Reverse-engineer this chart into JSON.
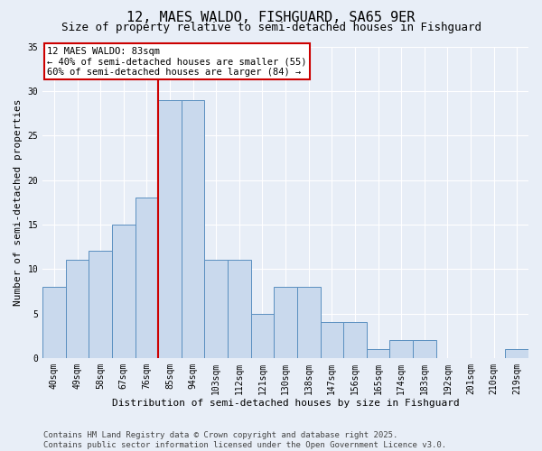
{
  "title": "12, MAES WALDO, FISHGUARD, SA65 9ER",
  "subtitle": "Size of property relative to semi-detached houses in Fishguard",
  "xlabel": "Distribution of semi-detached houses by size in Fishguard",
  "ylabel": "Number of semi-detached properties",
  "categories": [
    "40sqm",
    "49sqm",
    "58sqm",
    "67sqm",
    "76sqm",
    "85sqm",
    "94sqm",
    "103sqm",
    "112sqm",
    "121sqm",
    "130sqm",
    "138sqm",
    "147sqm",
    "156sqm",
    "165sqm",
    "174sqm",
    "183sqm",
    "192sqm",
    "201sqm",
    "210sqm",
    "219sqm"
  ],
  "values": [
    8,
    11,
    12,
    15,
    18,
    29,
    29,
    11,
    11,
    5,
    8,
    8,
    4,
    4,
    1,
    2,
    2,
    0,
    0,
    0,
    1
  ],
  "bar_color": "#c9d9ed",
  "bar_edge_color": "#5a8fc0",
  "vline_x": 4.5,
  "annotation_text": "12 MAES WALDO: 83sqm\n← 40% of semi-detached houses are smaller (55)\n60% of semi-detached houses are larger (84) →",
  "annotation_box_facecolor": "#ffffff",
  "annotation_box_edgecolor": "#cc0000",
  "vline_color": "#cc0000",
  "ylim": [
    0,
    35
  ],
  "yticks": [
    0,
    5,
    10,
    15,
    20,
    25,
    30,
    35
  ],
  "bg_color": "#e8eef7",
  "grid_color": "#c8d0dc",
  "footer_text": "Contains HM Land Registry data © Crown copyright and database right 2025.\nContains public sector information licensed under the Open Government Licence v3.0.",
  "title_fontsize": 11,
  "subtitle_fontsize": 9,
  "axis_label_fontsize": 8,
  "tick_fontsize": 7,
  "annotation_fontsize": 7.5,
  "footer_fontsize": 6.5
}
